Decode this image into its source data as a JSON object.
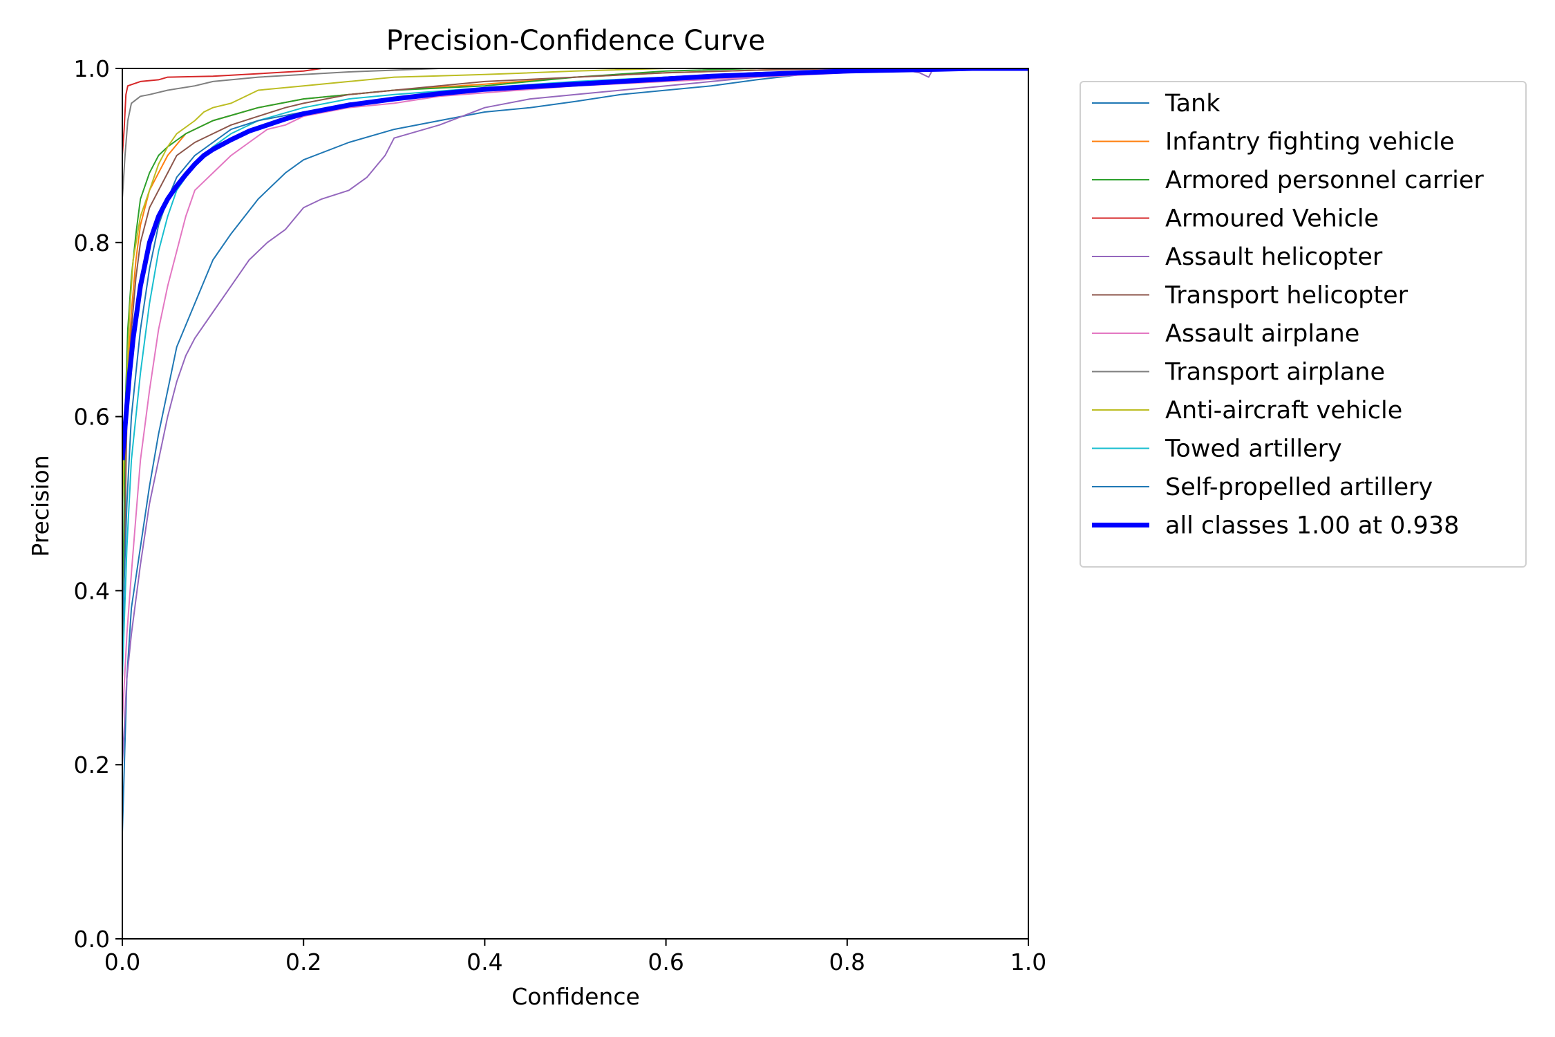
{
  "chart_data": {
    "type": "line",
    "title": "Precision-Confidence Curve",
    "xlabel": "Confidence",
    "ylabel": "Precision",
    "xlim": [
      0,
      1
    ],
    "ylim": [
      0,
      1
    ],
    "xticks": [
      "0.0",
      "0.2",
      "0.4",
      "0.6",
      "0.8",
      "1.0"
    ],
    "yticks": [
      "0.0",
      "0.2",
      "0.4",
      "0.6",
      "0.8",
      "1.0"
    ],
    "grid": false,
    "legend_position": "outside-right",
    "series": [
      {
        "name": "Tank",
        "color": "#1f77b4",
        "width": 2,
        "points": [
          [
            0,
            0.12
          ],
          [
            0.005,
            0.3
          ],
          [
            0.01,
            0.38
          ],
          [
            0.02,
            0.45
          ],
          [
            0.03,
            0.52
          ],
          [
            0.04,
            0.58
          ],
          [
            0.05,
            0.63
          ],
          [
            0.06,
            0.68
          ],
          [
            0.08,
            0.73
          ],
          [
            0.1,
            0.78
          ],
          [
            0.12,
            0.81
          ],
          [
            0.15,
            0.85
          ],
          [
            0.18,
            0.88
          ],
          [
            0.2,
            0.895
          ],
          [
            0.25,
            0.915
          ],
          [
            0.3,
            0.93
          ],
          [
            0.35,
            0.94
          ],
          [
            0.4,
            0.95
          ],
          [
            0.45,
            0.955
          ],
          [
            0.5,
            0.962
          ],
          [
            0.55,
            0.97
          ],
          [
            0.6,
            0.975
          ],
          [
            0.65,
            0.98
          ],
          [
            0.7,
            0.987
          ],
          [
            0.75,
            0.993
          ],
          [
            0.8,
            0.996
          ],
          [
            0.85,
            0.998
          ],
          [
            0.9,
            1.0
          ],
          [
            1.0,
            1.0
          ]
        ]
      },
      {
        "name": "Infantry fighting vehicle",
        "color": "#ff7f0e",
        "width": 2,
        "points": [
          [
            0,
            0.3
          ],
          [
            0.003,
            0.55
          ],
          [
            0.006,
            0.65
          ],
          [
            0.01,
            0.72
          ],
          [
            0.015,
            0.78
          ],
          [
            0.02,
            0.82
          ],
          [
            0.03,
            0.86
          ],
          [
            0.04,
            0.88
          ],
          [
            0.05,
            0.9
          ],
          [
            0.07,
            0.925
          ],
          [
            0.1,
            0.94
          ],
          [
            0.15,
            0.955
          ],
          [
            0.2,
            0.965
          ],
          [
            0.3,
            0.975
          ],
          [
            0.4,
            0.982
          ],
          [
            0.5,
            0.99
          ],
          [
            0.6,
            0.995
          ],
          [
            0.7,
            0.998
          ],
          [
            0.8,
            1.0
          ],
          [
            1.0,
            1.0
          ]
        ]
      },
      {
        "name": "Armored personnel carrier",
        "color": "#2ca02c",
        "width": 2,
        "points": [
          [
            0,
            0.3
          ],
          [
            0.003,
            0.6
          ],
          [
            0.006,
            0.7
          ],
          [
            0.01,
            0.76
          ],
          [
            0.015,
            0.81
          ],
          [
            0.02,
            0.85
          ],
          [
            0.03,
            0.88
          ],
          [
            0.04,
            0.9
          ],
          [
            0.05,
            0.91
          ],
          [
            0.07,
            0.925
          ],
          [
            0.1,
            0.94
          ],
          [
            0.15,
            0.955
          ],
          [
            0.2,
            0.965
          ],
          [
            0.25,
            0.97
          ],
          [
            0.3,
            0.975
          ],
          [
            0.4,
            0.98
          ],
          [
            0.5,
            0.99
          ],
          [
            0.6,
            0.997
          ],
          [
            0.7,
            1.0
          ],
          [
            1.0,
            1.0
          ]
        ]
      },
      {
        "name": "Armoured Vehicle",
        "color": "#d62728",
        "width": 2,
        "points": [
          [
            0,
            0.9
          ],
          [
            0.002,
            0.93
          ],
          [
            0.004,
            0.97
          ],
          [
            0.006,
            0.98
          ],
          [
            0.02,
            0.985
          ],
          [
            0.04,
            0.987
          ],
          [
            0.05,
            0.99
          ],
          [
            0.1,
            0.991
          ],
          [
            0.15,
            0.994
          ],
          [
            0.2,
            0.997
          ],
          [
            0.22,
            1.0
          ],
          [
            1.0,
            1.0
          ]
        ]
      },
      {
        "name": "Assault helicopter",
        "color": "#9467bd",
        "width": 2,
        "points": [
          [
            0,
            0.2
          ],
          [
            0.005,
            0.3
          ],
          [
            0.01,
            0.35
          ],
          [
            0.02,
            0.43
          ],
          [
            0.03,
            0.5
          ],
          [
            0.04,
            0.55
          ],
          [
            0.05,
            0.6
          ],
          [
            0.06,
            0.64
          ],
          [
            0.07,
            0.67
          ],
          [
            0.08,
            0.69
          ],
          [
            0.1,
            0.72
          ],
          [
            0.12,
            0.75
          ],
          [
            0.14,
            0.78
          ],
          [
            0.16,
            0.8
          ],
          [
            0.18,
            0.815
          ],
          [
            0.2,
            0.84
          ],
          [
            0.22,
            0.85
          ],
          [
            0.25,
            0.86
          ],
          [
            0.27,
            0.875
          ],
          [
            0.29,
            0.9
          ],
          [
            0.3,
            0.92
          ],
          [
            0.35,
            0.935
          ],
          [
            0.4,
            0.955
          ],
          [
            0.45,
            0.965
          ],
          [
            0.5,
            0.97
          ],
          [
            0.55,
            0.975
          ],
          [
            0.6,
            0.98
          ],
          [
            0.65,
            0.985
          ],
          [
            0.7,
            0.99
          ],
          [
            0.75,
            0.993
          ],
          [
            0.8,
            0.996
          ],
          [
            0.85,
            1.0
          ],
          [
            0.87,
            0.997
          ],
          [
            0.88,
            0.995
          ],
          [
            0.89,
            0.99
          ],
          [
            0.895,
            1.0
          ],
          [
            1.0,
            1.0
          ]
        ]
      },
      {
        "name": "Transport helicopter",
        "color": "#8c564b",
        "width": 2,
        "points": [
          [
            0,
            0.3
          ],
          [
            0.005,
            0.6
          ],
          [
            0.01,
            0.7
          ],
          [
            0.015,
            0.76
          ],
          [
            0.02,
            0.8
          ],
          [
            0.03,
            0.84
          ],
          [
            0.04,
            0.86
          ],
          [
            0.05,
            0.88
          ],
          [
            0.06,
            0.9
          ],
          [
            0.08,
            0.915
          ],
          [
            0.1,
            0.925
          ],
          [
            0.12,
            0.935
          ],
          [
            0.15,
            0.945
          ],
          [
            0.18,
            0.955
          ],
          [
            0.2,
            0.96
          ],
          [
            0.25,
            0.97
          ],
          [
            0.3,
            0.975
          ],
          [
            0.4,
            0.985
          ],
          [
            0.5,
            0.99
          ],
          [
            0.6,
            0.995
          ],
          [
            0.7,
            0.998
          ],
          [
            0.8,
            1.0
          ],
          [
            1.0,
            1.0
          ]
        ]
      },
      {
        "name": "Assault airplane",
        "color": "#e377c2",
        "width": 2,
        "points": [
          [
            0,
            0.25
          ],
          [
            0.005,
            0.35
          ],
          [
            0.01,
            0.42
          ],
          [
            0.02,
            0.55
          ],
          [
            0.03,
            0.63
          ],
          [
            0.04,
            0.7
          ],
          [
            0.05,
            0.75
          ],
          [
            0.06,
            0.79
          ],
          [
            0.07,
            0.83
          ],
          [
            0.08,
            0.86
          ],
          [
            0.1,
            0.88
          ],
          [
            0.12,
            0.9
          ],
          [
            0.14,
            0.915
          ],
          [
            0.16,
            0.93
          ],
          [
            0.18,
            0.935
          ],
          [
            0.2,
            0.945
          ],
          [
            0.25,
            0.955
          ],
          [
            0.3,
            0.96
          ],
          [
            0.35,
            0.968
          ],
          [
            0.4,
            0.972
          ],
          [
            0.5,
            0.98
          ],
          [
            0.6,
            0.985
          ],
          [
            0.7,
            0.99
          ],
          [
            0.8,
            0.995
          ],
          [
            0.9,
            1.0
          ],
          [
            1.0,
            1.0
          ]
        ]
      },
      {
        "name": "Transport airplane",
        "color": "#7f7f7f",
        "width": 2,
        "points": [
          [
            0,
            0.85
          ],
          [
            0.003,
            0.9
          ],
          [
            0.006,
            0.94
          ],
          [
            0.01,
            0.96
          ],
          [
            0.02,
            0.968
          ],
          [
            0.03,
            0.97
          ],
          [
            0.05,
            0.975
          ],
          [
            0.08,
            0.98
          ],
          [
            0.1,
            0.985
          ],
          [
            0.15,
            0.99
          ],
          [
            0.2,
            0.993
          ],
          [
            0.25,
            0.996
          ],
          [
            0.3,
            0.998
          ],
          [
            0.35,
            1.0
          ],
          [
            1.0,
            1.0
          ]
        ]
      },
      {
        "name": "Anti-aircraft vehicle",
        "color": "#bcbd22",
        "width": 2,
        "points": [
          [
            0,
            0.5
          ],
          [
            0.004,
            0.62
          ],
          [
            0.008,
            0.72
          ],
          [
            0.012,
            0.78
          ],
          [
            0.02,
            0.83
          ],
          [
            0.03,
            0.86
          ],
          [
            0.04,
            0.89
          ],
          [
            0.05,
            0.91
          ],
          [
            0.06,
            0.925
          ],
          [
            0.08,
            0.94
          ],
          [
            0.09,
            0.95
          ],
          [
            0.1,
            0.955
          ],
          [
            0.12,
            0.96
          ],
          [
            0.13,
            0.965
          ],
          [
            0.15,
            0.975
          ],
          [
            0.2,
            0.98
          ],
          [
            0.25,
            0.985
          ],
          [
            0.3,
            0.99
          ],
          [
            0.4,
            0.993
          ],
          [
            0.5,
            0.997
          ],
          [
            0.6,
            1.0
          ],
          [
            1.0,
            1.0
          ]
        ]
      },
      {
        "name": "Towed artillery",
        "color": "#17becf",
        "width": 2,
        "points": [
          [
            0,
            0.3
          ],
          [
            0.005,
            0.45
          ],
          [
            0.01,
            0.55
          ],
          [
            0.02,
            0.65
          ],
          [
            0.03,
            0.73
          ],
          [
            0.04,
            0.79
          ],
          [
            0.05,
            0.83
          ],
          [
            0.06,
            0.86
          ],
          [
            0.08,
            0.89
          ],
          [
            0.1,
            0.91
          ],
          [
            0.12,
            0.925
          ],
          [
            0.15,
            0.94
          ],
          [
            0.2,
            0.955
          ],
          [
            0.25,
            0.965
          ],
          [
            0.3,
            0.97
          ],
          [
            0.4,
            0.978
          ],
          [
            0.5,
            0.985
          ],
          [
            0.6,
            0.99
          ],
          [
            0.7,
            0.995
          ],
          [
            0.8,
            0.998
          ],
          [
            0.9,
            1.0
          ],
          [
            1.0,
            1.0
          ]
        ]
      },
      {
        "name": "Self-propelled artillery",
        "color": "#1f77b4",
        "width": 2,
        "points": [
          [
            0,
            0.35
          ],
          [
            0.005,
            0.5
          ],
          [
            0.01,
            0.6
          ],
          [
            0.02,
            0.7
          ],
          [
            0.03,
            0.77
          ],
          [
            0.04,
            0.82
          ],
          [
            0.05,
            0.85
          ],
          [
            0.06,
            0.875
          ],
          [
            0.08,
            0.9
          ],
          [
            0.1,
            0.915
          ],
          [
            0.12,
            0.93
          ],
          [
            0.15,
            0.94
          ],
          [
            0.2,
            0.95
          ],
          [
            0.25,
            0.958
          ],
          [
            0.3,
            0.965
          ],
          [
            0.4,
            0.975
          ],
          [
            0.5,
            0.983
          ],
          [
            0.6,
            0.99
          ],
          [
            0.7,
            0.995
          ],
          [
            0.8,
            0.998
          ],
          [
            0.9,
            1.0
          ],
          [
            1.0,
            1.0
          ]
        ]
      },
      {
        "name": "all classes 1.00 at 0.938",
        "color": "#0000ff",
        "width": 7,
        "points": [
          [
            0,
            0.55
          ],
          [
            0.004,
            0.6
          ],
          [
            0.008,
            0.65
          ],
          [
            0.012,
            0.69
          ],
          [
            0.016,
            0.72
          ],
          [
            0.02,
            0.75
          ],
          [
            0.025,
            0.775
          ],
          [
            0.03,
            0.8
          ],
          [
            0.04,
            0.83
          ],
          [
            0.05,
            0.85
          ],
          [
            0.06,
            0.865
          ],
          [
            0.07,
            0.878
          ],
          [
            0.08,
            0.89
          ],
          [
            0.09,
            0.9
          ],
          [
            0.1,
            0.907
          ],
          [
            0.12,
            0.918
          ],
          [
            0.14,
            0.928
          ],
          [
            0.16,
            0.935
          ],
          [
            0.18,
            0.942
          ],
          [
            0.2,
            0.948
          ],
          [
            0.25,
            0.958
          ],
          [
            0.3,
            0.965
          ],
          [
            0.35,
            0.971
          ],
          [
            0.4,
            0.976
          ],
          [
            0.45,
            0.979
          ],
          [
            0.5,
            0.982
          ],
          [
            0.55,
            0.985
          ],
          [
            0.6,
            0.988
          ],
          [
            0.65,
            0.991
          ],
          [
            0.7,
            0.993
          ],
          [
            0.75,
            0.995
          ],
          [
            0.8,
            0.997
          ],
          [
            0.85,
            0.998
          ],
          [
            0.9,
            0.999
          ],
          [
            0.938,
            1.0
          ],
          [
            1.0,
            1.0
          ]
        ]
      }
    ]
  }
}
